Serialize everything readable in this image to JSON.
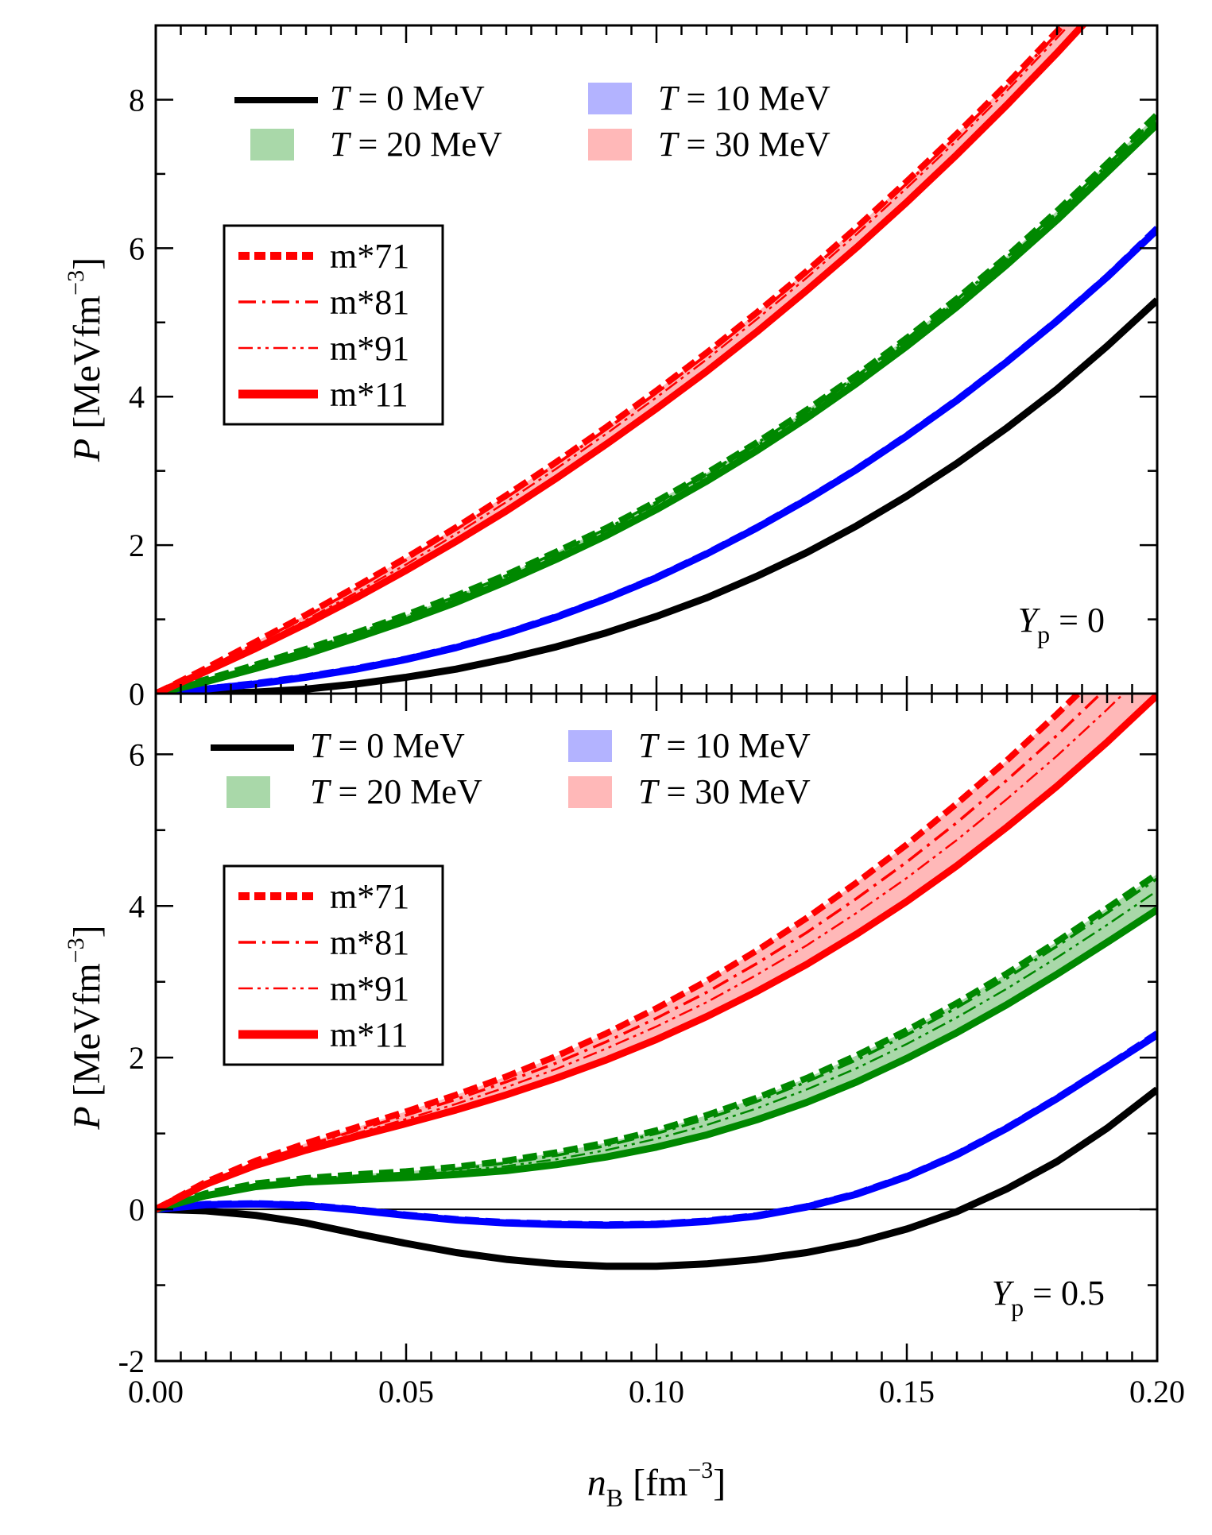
{
  "chart_data": [
    {
      "type": "line",
      "panel": "top",
      "annotation": {
        "symbol": "Y",
        "sub": "p",
        "text": " = 0"
      },
      "ylabel": {
        "symbol": "P",
        "unit_pre": " [MeVfm",
        "sup": "−3",
        "unit_post": "]"
      },
      "xlim": [
        0,
        0.2
      ],
      "ylim": [
        0,
        9
      ],
      "yticks": [
        "0",
        "2",
        "4",
        "6",
        "8"
      ],
      "yticks_values": [
        0,
        2,
        4,
        6,
        8
      ],
      "legend_T": [
        {
          "label_sym": "T",
          "label_rest": " = 0 MeV",
          "kind": "line",
          "color": "#000000"
        },
        {
          "label_sym": "T",
          "label_rest": " = 10 MeV",
          "kind": "band",
          "color": "#b3b3ff"
        },
        {
          "label_sym": "T",
          "label_rest": " = 20 MeV",
          "kind": "band",
          "color": "#a9d8a9"
        },
        {
          "label_sym": "T",
          "label_rest": " = 30 MeV",
          "kind": "band",
          "color": "#ffb8b8"
        }
      ],
      "legend_m": [
        "m*71",
        "m*81",
        "m*91",
        "m*11"
      ],
      "x": [
        0,
        0.01,
        0.02,
        0.03,
        0.04,
        0.05,
        0.06,
        0.07,
        0.08,
        0.09,
        0.1,
        0.11,
        0.12,
        0.13,
        0.14,
        0.15,
        0.16,
        0.17,
        0.18,
        0.19,
        0.2
      ],
      "series": [
        {
          "group": "T=0",
          "color": "#000000",
          "style": "solid",
          "values": [
            0,
            0.003,
            0.02,
            0.06,
            0.13,
            0.22,
            0.33,
            0.47,
            0.63,
            0.82,
            1.04,
            1.29,
            1.58,
            1.9,
            2.26,
            2.66,
            3.1,
            3.58,
            4.1,
            4.68,
            5.3
          ]
        },
        {
          "group": "T=10",
          "color": "#0000ff",
          "style": "solid",
          "values": [
            0,
            0.06,
            0.13,
            0.22,
            0.33,
            0.46,
            0.62,
            0.81,
            1.03,
            1.28,
            1.56,
            1.88,
            2.23,
            2.61,
            3.02,
            3.47,
            3.95,
            4.47,
            5.02,
            5.61,
            6.25
          ]
        },
        {
          "group": "T=10",
          "color": "#0000ff",
          "style": "dashed",
          "values": [
            0,
            0.065,
            0.14,
            0.23,
            0.34,
            0.47,
            0.63,
            0.82,
            1.04,
            1.29,
            1.57,
            1.89,
            2.24,
            2.62,
            3.03,
            3.48,
            3.96,
            4.48,
            5.03,
            5.62,
            6.27
          ]
        },
        {
          "group": "T=20",
          "color": "#008800",
          "style": "dashed",
          "values": [
            0,
            0.19,
            0.39,
            0.6,
            0.82,
            1.06,
            1.32,
            1.6,
            1.91,
            2.23,
            2.59,
            2.97,
            3.38,
            3.82,
            4.29,
            4.79,
            5.32,
            5.89,
            6.5,
            7.14,
            7.8
          ]
        },
        {
          "group": "T=20",
          "color": "#008800",
          "style": "dashdot",
          "values": [
            0,
            0.18,
            0.38,
            0.59,
            0.81,
            1.05,
            1.31,
            1.59,
            1.9,
            2.22,
            2.58,
            2.96,
            3.37,
            3.81,
            4.28,
            4.78,
            5.31,
            5.88,
            6.48,
            7.12,
            7.77
          ]
        },
        {
          "group": "T=20",
          "color": "#008800",
          "style": "dashdotdot",
          "values": [
            0,
            0.17,
            0.36,
            0.56,
            0.78,
            1.02,
            1.28,
            1.56,
            1.87,
            2.19,
            2.55,
            2.93,
            3.34,
            3.78,
            4.25,
            4.75,
            5.28,
            5.85,
            6.45,
            7.08,
            7.73
          ]
        },
        {
          "group": "T=20",
          "color": "#008800",
          "style": "solid",
          "values": [
            0,
            0.16,
            0.34,
            0.53,
            0.75,
            0.98,
            1.23,
            1.51,
            1.81,
            2.13,
            2.48,
            2.86,
            3.27,
            3.71,
            4.18,
            4.68,
            5.21,
            5.78,
            6.38,
            7.02,
            7.67
          ]
        },
        {
          "group": "T=30",
          "color": "#ff0000",
          "style": "dashed",
          "values": [
            0,
            0.34,
            0.7,
            1.06,
            1.44,
            1.83,
            2.24,
            2.67,
            3.12,
            3.59,
            4.08,
            4.59,
            5.13,
            5.69,
            6.28,
            6.9,
            7.54,
            8.21,
            8.92,
            9.66,
            10.42
          ]
        },
        {
          "group": "T=30",
          "color": "#ff0000",
          "style": "dashdot",
          "values": [
            0,
            0.33,
            0.68,
            1.04,
            1.41,
            1.8,
            2.21,
            2.64,
            3.09,
            3.56,
            4.05,
            4.56,
            5.1,
            5.66,
            6.25,
            6.87,
            7.51,
            8.18,
            8.89,
            9.62,
            10.38
          ]
        },
        {
          "group": "T=30",
          "color": "#ff0000",
          "style": "dashdotdot",
          "values": [
            0,
            0.31,
            0.64,
            0.99,
            1.36,
            1.74,
            2.15,
            2.58,
            3.03,
            3.5,
            3.99,
            4.5,
            5.04,
            5.6,
            6.19,
            6.81,
            7.45,
            8.12,
            8.83,
            9.56,
            10.3
          ]
        },
        {
          "group": "T=30",
          "color": "#ff0000",
          "style": "solid",
          "values": [
            0,
            0.3,
            0.61,
            0.94,
            1.29,
            1.66,
            2.05,
            2.46,
            2.9,
            3.36,
            3.84,
            4.34,
            4.87,
            5.43,
            6.01,
            6.62,
            7.26,
            7.93,
            8.63,
            9.36,
            10.1
          ]
        }
      ]
    },
    {
      "type": "line",
      "panel": "bottom",
      "annotation": {
        "symbol": "Y",
        "sub": "p",
        "text": " = 0.5"
      },
      "ylabel": {
        "symbol": "P",
        "unit_pre": " [MeVfm",
        "sup": "−3",
        "unit_post": "]"
      },
      "xlabel": {
        "symbol": "n",
        "sub": "B",
        "unit_pre": " [fm",
        "sup": "−3",
        "unit_post": "]"
      },
      "xlim": [
        0,
        0.2
      ],
      "ylim": [
        -2,
        6.8
      ],
      "yticks": [
        "-2",
        "0",
        "2",
        "4",
        "6"
      ],
      "yticks_values": [
        -2,
        0,
        2,
        4,
        6
      ],
      "xticks": [
        "0.00",
        "0.05",
        "0.10",
        "0.15",
        "0.20"
      ],
      "xticks_values": [
        0,
        0.05,
        0.1,
        0.15,
        0.2
      ],
      "legend_T": [
        {
          "label_sym": "T",
          "label_rest": " = 0 MeV",
          "kind": "line",
          "color": "#000000"
        },
        {
          "label_sym": "T",
          "label_rest": " = 10 MeV",
          "kind": "band",
          "color": "#b3b3ff"
        },
        {
          "label_sym": "T",
          "label_rest": " = 20 MeV",
          "kind": "band",
          "color": "#a9d8a9"
        },
        {
          "label_sym": "T",
          "label_rest": " = 30 MeV",
          "kind": "band",
          "color": "#ffb8b8"
        }
      ],
      "legend_m": [
        "m*71",
        "m*81",
        "m*91",
        "m*11"
      ],
      "x": [
        0,
        0.01,
        0.02,
        0.03,
        0.04,
        0.05,
        0.06,
        0.07,
        0.08,
        0.09,
        0.1,
        0.11,
        0.12,
        0.13,
        0.14,
        0.15,
        0.16,
        0.17,
        0.18,
        0.19,
        0.2
      ],
      "series": [
        {
          "group": "T=0",
          "color": "#000000",
          "style": "solid",
          "values": [
            0,
            -0.02,
            -0.08,
            -0.18,
            -0.32,
            -0.45,
            -0.57,
            -0.66,
            -0.72,
            -0.75,
            -0.75,
            -0.72,
            -0.66,
            -0.57,
            -0.44,
            -0.26,
            -0.03,
            0.27,
            0.63,
            1.07,
            1.58
          ]
        },
        {
          "group": "T=10",
          "color": "#0000ff",
          "style": "solid",
          "values": [
            0,
            0.06,
            0.07,
            0.05,
            -0.01,
            -0.08,
            -0.14,
            -0.18,
            -0.2,
            -0.21,
            -0.2,
            -0.16,
            -0.09,
            0.03,
            0.2,
            0.43,
            0.72,
            1.07,
            1.46,
            1.88,
            2.3
          ]
        },
        {
          "group": "T=10",
          "color": "#0000ff",
          "style": "dashed",
          "values": [
            0,
            0.07,
            0.08,
            0.06,
            0.0,
            -0.07,
            -0.13,
            -0.17,
            -0.19,
            -0.2,
            -0.19,
            -0.15,
            -0.08,
            0.04,
            0.21,
            0.44,
            0.73,
            1.08,
            1.47,
            1.89,
            2.32
          ]
        },
        {
          "group": "T=20",
          "color": "#008800",
          "style": "dashed",
          "values": [
            0,
            0.21,
            0.34,
            0.41,
            0.46,
            0.5,
            0.56,
            0.64,
            0.75,
            0.88,
            1.04,
            1.24,
            1.47,
            1.73,
            2.03,
            2.36,
            2.72,
            3.11,
            3.53,
            3.97,
            4.42
          ]
        },
        {
          "group": "T=20",
          "color": "#008800",
          "style": "dashdot",
          "values": [
            0,
            0.2,
            0.33,
            0.4,
            0.44,
            0.48,
            0.53,
            0.61,
            0.71,
            0.84,
            1.0,
            1.19,
            1.42,
            1.68,
            1.97,
            2.3,
            2.66,
            3.05,
            3.47,
            3.91,
            4.36
          ]
        },
        {
          "group": "T=20",
          "color": "#008800",
          "style": "dashdotdot",
          "values": [
            0,
            0.19,
            0.32,
            0.38,
            0.42,
            0.45,
            0.5,
            0.57,
            0.66,
            0.78,
            0.93,
            1.11,
            1.33,
            1.58,
            1.86,
            2.18,
            2.53,
            2.91,
            3.32,
            3.75,
            4.2
          ]
        },
        {
          "group": "T=20",
          "color": "#008800",
          "style": "solid",
          "values": [
            0,
            0.18,
            0.3,
            0.36,
            0.39,
            0.42,
            0.46,
            0.51,
            0.59,
            0.69,
            0.82,
            0.98,
            1.18,
            1.41,
            1.68,
            1.99,
            2.33,
            2.7,
            3.1,
            3.52,
            3.95
          ]
        },
        {
          "group": "T=30",
          "color": "#ff0000",
          "style": "dashed",
          "values": [
            0,
            0.36,
            0.64,
            0.87,
            1.08,
            1.29,
            1.51,
            1.75,
            2.02,
            2.32,
            2.65,
            3.01,
            3.41,
            3.84,
            4.31,
            4.81,
            5.35,
            5.92,
            6.53,
            7.17,
            7.84
          ]
        },
        {
          "group": "T=30",
          "color": "#ff0000",
          "style": "dashdot",
          "values": [
            0,
            0.35,
            0.62,
            0.84,
            1.04,
            1.24,
            1.45,
            1.68,
            1.93,
            2.21,
            2.52,
            2.86,
            3.24,
            3.65,
            4.1,
            4.58,
            5.1,
            5.66,
            6.25,
            6.88,
            7.54
          ]
        },
        {
          "group": "T=30",
          "color": "#ff0000",
          "style": "dashdotdot",
          "values": [
            0,
            0.34,
            0.6,
            0.81,
            1.0,
            1.19,
            1.39,
            1.61,
            1.85,
            2.12,
            2.41,
            2.73,
            3.09,
            3.48,
            3.91,
            4.37,
            4.87,
            5.41,
            5.98,
            6.59,
            7.23
          ]
        },
        {
          "group": "T=30",
          "color": "#ff0000",
          "style": "solid",
          "values": [
            0,
            0.33,
            0.58,
            0.78,
            0.96,
            1.13,
            1.31,
            1.51,
            1.73,
            1.97,
            2.24,
            2.54,
            2.87,
            3.23,
            3.63,
            4.06,
            4.53,
            5.04,
            5.58,
            6.16,
            6.78
          ]
        }
      ]
    }
  ]
}
